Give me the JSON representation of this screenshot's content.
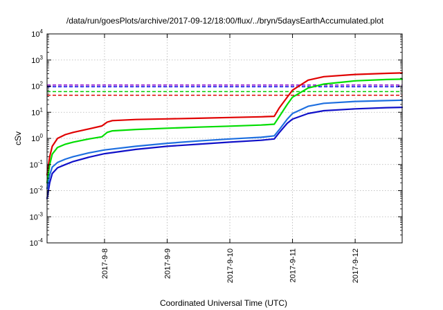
{
  "chart_data": {
    "type": "line",
    "title": "/data/run/goesPlots/archive/2017-09-12/18:00/flux/../bryn/5daysEarthAccumulated.plot",
    "xlabel": "Coordinated Universal Time (UTC)",
    "ylabel": "cSv",
    "y_scale": "log",
    "ylim": [
      0.0001,
      10000
    ],
    "xlim": [
      "2017-09-07T02:00",
      "2017-09-12T18:00"
    ],
    "grid": true,
    "y_ticks": [
      {
        "base": "10",
        "exp": "-4",
        "value": 0.0001
      },
      {
        "base": "10",
        "exp": "-3",
        "value": 0.001
      },
      {
        "base": "10",
        "exp": "-2",
        "value": 0.01
      },
      {
        "base": "10",
        "exp": "-1",
        "value": 0.1
      },
      {
        "base": "10",
        "exp": "0",
        "value": 1
      },
      {
        "base": "10",
        "exp": "1",
        "value": 10
      },
      {
        "base": "10",
        "exp": "2",
        "value": 100
      },
      {
        "base": "10",
        "exp": "3",
        "value": 1000
      },
      {
        "base": "10",
        "exp": "4",
        "value": 10000
      }
    ],
    "x_ticks": [
      {
        "label": "2017-9-8",
        "value": "2017-09-08T00:00"
      },
      {
        "label": "2017-9-9",
        "value": "2017-09-09T00:00"
      },
      {
        "label": "2017-9-10",
        "value": "2017-09-10T00:00"
      },
      {
        "label": "2017-9-11",
        "value": "2017-09-11T00:00"
      },
      {
        "label": "2017-9-12",
        "value": "2017-09-12T00:00"
      }
    ],
    "thresholds": [
      {
        "value": 110,
        "color": "#8800cc"
      },
      {
        "value": 95,
        "color": "#0000ee"
      },
      {
        "value": 62,
        "color": "#00cc00"
      },
      {
        "value": 45,
        "color": "#dd0000"
      }
    ],
    "series": [
      {
        "color": "#e00000",
        "x": [
          "2017-09-07T02:00",
          "2017-09-07T03:00",
          "2017-09-07T04:00",
          "2017-09-07T06:00",
          "2017-09-07T09:00",
          "2017-09-07T12:00",
          "2017-09-07T18:00",
          "2017-09-07T23:00",
          "2017-09-08T01:00",
          "2017-09-08T03:00",
          "2017-09-08T12:00",
          "2017-09-09T00:00",
          "2017-09-09T12:00",
          "2017-09-10T00:00",
          "2017-09-10T12:00",
          "2017-09-10T17:00",
          "2017-09-10T19:00",
          "2017-09-10T22:00",
          "2017-09-11T00:00",
          "2017-09-11T06:00",
          "2017-09-11T12:00",
          "2017-09-12T00:00",
          "2017-09-12T12:00",
          "2017-09-12T18:00"
        ],
        "y": [
          0.04,
          0.2,
          0.5,
          1.0,
          1.4,
          1.7,
          2.3,
          3.0,
          4.2,
          4.8,
          5.3,
          5.6,
          5.9,
          6.3,
          6.7,
          7.0,
          15,
          38,
          70,
          170,
          230,
          280,
          310,
          320
        ]
      },
      {
        "color": "#00dd00",
        "x": [
          "2017-09-07T02:00",
          "2017-09-07T03:00",
          "2017-09-07T04:00",
          "2017-09-07T06:00",
          "2017-09-07T09:00",
          "2017-09-07T12:00",
          "2017-09-07T18:00",
          "2017-09-07T23:00",
          "2017-09-08T01:00",
          "2017-09-08T03:00",
          "2017-09-08T12:00",
          "2017-09-09T00:00",
          "2017-09-09T12:00",
          "2017-09-10T00:00",
          "2017-09-10T12:00",
          "2017-09-10T17:00",
          "2017-09-10T19:00",
          "2017-09-10T22:00",
          "2017-09-11T00:00",
          "2017-09-11T06:00",
          "2017-09-11T12:00",
          "2017-09-12T00:00",
          "2017-09-12T12:00",
          "2017-09-12T18:00"
        ],
        "y": [
          0.02,
          0.1,
          0.25,
          0.45,
          0.6,
          0.72,
          0.95,
          1.15,
          1.7,
          1.95,
          2.2,
          2.45,
          2.7,
          2.95,
          3.25,
          3.5,
          7,
          20,
          38,
          85,
          120,
          160,
          180,
          185
        ]
      },
      {
        "color": "#1e6fe0",
        "x": [
          "2017-09-07T02:00",
          "2017-09-07T03:00",
          "2017-09-07T04:00",
          "2017-09-07T06:00",
          "2017-09-07T09:00",
          "2017-09-07T12:00",
          "2017-09-07T18:00",
          "2017-09-08T00:00",
          "2017-09-08T12:00",
          "2017-09-09T00:00",
          "2017-09-09T12:00",
          "2017-09-10T00:00",
          "2017-09-10T12:00",
          "2017-09-10T17:00",
          "2017-09-10T19:00",
          "2017-09-10T22:00",
          "2017-09-11T00:00",
          "2017-09-11T06:00",
          "2017-09-11T12:00",
          "2017-09-12T00:00",
          "2017-09-12T12:00",
          "2017-09-12T18:00"
        ],
        "y": [
          0.012,
          0.04,
          0.08,
          0.12,
          0.16,
          0.2,
          0.28,
          0.36,
          0.5,
          0.65,
          0.8,
          0.95,
          1.1,
          1.25,
          2.2,
          5.5,
          9,
          17,
          22,
          26,
          28,
          29
        ]
      },
      {
        "color": "#1010c8",
        "x": [
          "2017-09-07T02:00",
          "2017-09-07T03:00",
          "2017-09-07T04:00",
          "2017-09-07T06:00",
          "2017-09-07T09:00",
          "2017-09-07T12:00",
          "2017-09-07T18:00",
          "2017-09-08T00:00",
          "2017-09-08T12:00",
          "2017-09-09T00:00",
          "2017-09-09T12:00",
          "2017-09-10T00:00",
          "2017-09-10T12:00",
          "2017-09-10T17:00",
          "2017-09-10T19:00",
          "2017-09-10T22:00",
          "2017-09-11T00:00",
          "2017-09-11T06:00",
          "2017-09-11T12:00",
          "2017-09-12T00:00",
          "2017-09-12T12:00",
          "2017-09-12T18:00"
        ],
        "y": [
          0.005,
          0.02,
          0.045,
          0.075,
          0.1,
          0.13,
          0.19,
          0.26,
          0.38,
          0.5,
          0.6,
          0.72,
          0.85,
          0.95,
          1.7,
          3.8,
          5.5,
          9,
          11.5,
          13.5,
          15,
          15.5
        ]
      }
    ]
  }
}
